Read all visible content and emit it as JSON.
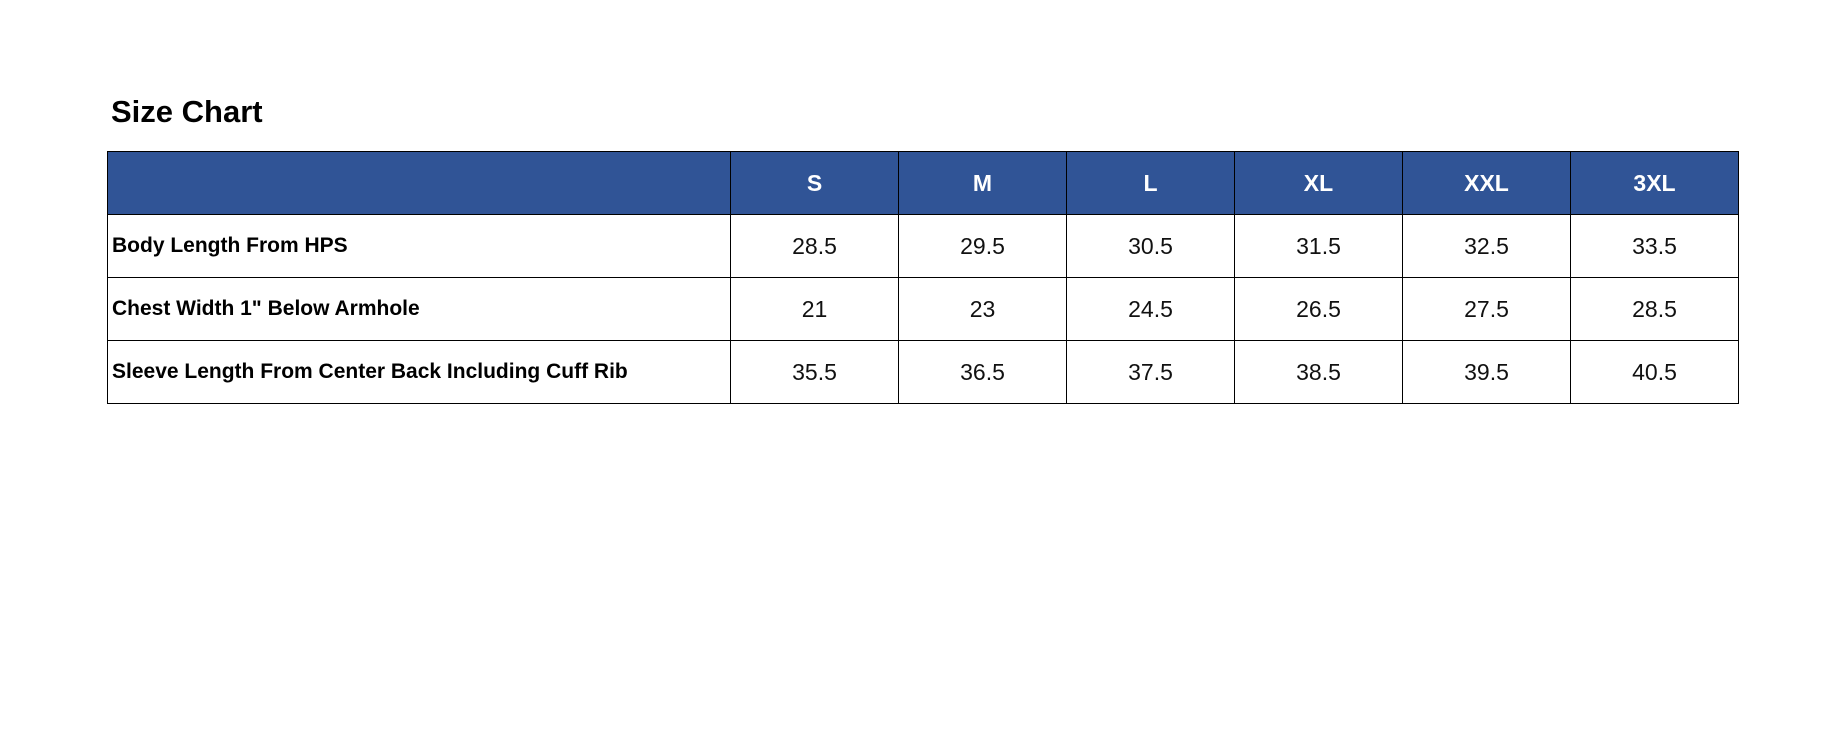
{
  "header": {
    "title": "Size Chart"
  },
  "table": {
    "columns": [
      "S",
      "M",
      "L",
      "XL",
      "XXL",
      "3XL"
    ],
    "rows": [
      {
        "label": "Body Length From HPS",
        "values": [
          28.5,
          29.5,
          30.5,
          31.5,
          32.5,
          33.5
        ]
      },
      {
        "label": "Chest Width 1\" Below Armhole",
        "values": [
          21,
          23,
          24.5,
          26.5,
          27.5,
          28.5
        ]
      },
      {
        "label": "Sleeve Length From Center Back Including Cuff Rib",
        "values": [
          35.5,
          36.5,
          37.5,
          38.5,
          39.5,
          40.5
        ]
      }
    ]
  }
}
